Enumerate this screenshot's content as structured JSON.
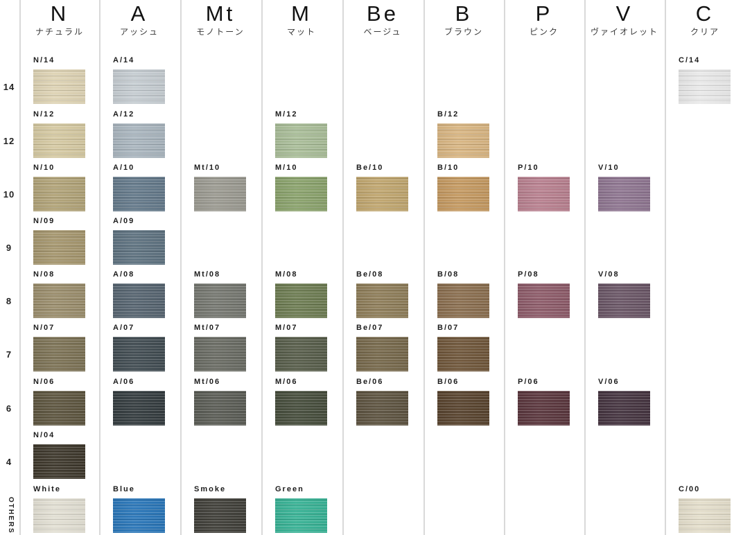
{
  "chart_data": {
    "type": "table",
    "title": "Hair color shade chart",
    "row_levels": [
      "14",
      "12",
      "10",
      "9",
      "8",
      "7",
      "6",
      "4",
      "OTHERS"
    ],
    "columns": [
      {
        "code": "N",
        "name_kana": "ナチュラル"
      },
      {
        "code": "A",
        "name_kana": "アッシュ"
      },
      {
        "code": "Mt",
        "name_kana": "モノトーン"
      },
      {
        "code": "M",
        "name_kana": "マット"
      },
      {
        "code": "Be",
        "name_kana": "ベージュ"
      },
      {
        "code": "B",
        "name_kana": "ブラウン"
      },
      {
        "code": "P",
        "name_kana": "ピンク"
      },
      {
        "code": "V",
        "name_kana": "ヴァイオレット"
      },
      {
        "code": "C",
        "name_kana": "クリア"
      }
    ],
    "swatches": [
      {
        "label": "N/14",
        "col": 0,
        "row": 0,
        "color": "#ded3b4"
      },
      {
        "label": "N/12",
        "col": 0,
        "row": 1,
        "color": "#d5c9a2"
      },
      {
        "label": "N/10",
        "col": 0,
        "row": 2,
        "color": "#b1a378"
      },
      {
        "label": "N/09",
        "col": 0,
        "row": 3,
        "color": "#a5966e"
      },
      {
        "label": "N/08",
        "col": 0,
        "row": 4,
        "color": "#9a8d6c"
      },
      {
        "label": "N/07",
        "col": 0,
        "row": 5,
        "color": "#7c7255"
      },
      {
        "label": "N/06",
        "col": 0,
        "row": 6,
        "color": "#5d553f"
      },
      {
        "label": "N/04",
        "col": 0,
        "row": 7,
        "color": "#3e382c"
      },
      {
        "label": "White",
        "col": 0,
        "row": 8,
        "color": "#e2dfd3"
      },
      {
        "label": "A/14",
        "col": 1,
        "row": 0,
        "color": "#c5ccd1"
      },
      {
        "label": "A/12",
        "col": 1,
        "row": 1,
        "color": "#a9b5be"
      },
      {
        "label": "A/10",
        "col": 1,
        "row": 2,
        "color": "#64798a"
      },
      {
        "label": "A/09",
        "col": 1,
        "row": 3,
        "color": "#5e7280"
      },
      {
        "label": "A/08",
        "col": 1,
        "row": 4,
        "color": "#566470"
      },
      {
        "label": "A/07",
        "col": 1,
        "row": 5,
        "color": "#414c52"
      },
      {
        "label": "A/06",
        "col": 1,
        "row": 6,
        "color": "#343c3f"
      },
      {
        "label": "Blue",
        "col": 1,
        "row": 8,
        "color": "#2a76b8"
      },
      {
        "label": "Mt/10",
        "col": 2,
        "row": 2,
        "color": "#9b9a91"
      },
      {
        "label": "Mt/08",
        "col": 2,
        "row": 4,
        "color": "#757770"
      },
      {
        "label": "Mt/07",
        "col": 2,
        "row": 5,
        "color": "#696b63"
      },
      {
        "label": "Mt/06",
        "col": 2,
        "row": 6,
        "color": "#5a5c55"
      },
      {
        "label": "Smoke",
        "col": 2,
        "row": 8,
        "color": "#403f39"
      },
      {
        "label": "M/12",
        "col": 3,
        "row": 1,
        "color": "#a9bd98"
      },
      {
        "label": "M/10",
        "col": 3,
        "row": 2,
        "color": "#8aa26c"
      },
      {
        "label": "M/08",
        "col": 3,
        "row": 4,
        "color": "#6d7c52"
      },
      {
        "label": "M/07",
        "col": 3,
        "row": 5,
        "color": "#575d4a"
      },
      {
        "label": "M/06",
        "col": 3,
        "row": 6,
        "color": "#464d3c"
      },
      {
        "label": "Green",
        "col": 3,
        "row": 8,
        "color": "#38b295"
      },
      {
        "label": "Be/10",
        "col": 4,
        "row": 2,
        "color": "#c0a66f"
      },
      {
        "label": "Be/08",
        "col": 4,
        "row": 4,
        "color": "#8e7d59"
      },
      {
        "label": "Be/07",
        "col": 4,
        "row": 5,
        "color": "#76684b"
      },
      {
        "label": "Be/06",
        "col": 4,
        "row": 6,
        "color": "#5d5340"
      },
      {
        "label": "B/12",
        "col": 5,
        "row": 1,
        "color": "#d8b582"
      },
      {
        "label": "B/10",
        "col": 5,
        "row": 2,
        "color": "#c49961"
      },
      {
        "label": "B/08",
        "col": 5,
        "row": 4,
        "color": "#8a6e4f"
      },
      {
        "label": "B/07",
        "col": 5,
        "row": 5,
        "color": "#6f563a"
      },
      {
        "label": "B/06",
        "col": 5,
        "row": 6,
        "color": "#58432e"
      },
      {
        "label": "P/10",
        "col": 6,
        "row": 2,
        "color": "#b8808f"
      },
      {
        "label": "P/08",
        "col": 6,
        "row": 4,
        "color": "#8d5b69"
      },
      {
        "label": "P/06",
        "col": 6,
        "row": 6,
        "color": "#5a363d"
      },
      {
        "label": "V/10",
        "col": 7,
        "row": 2,
        "color": "#8e7590"
      },
      {
        "label": "V/08",
        "col": 7,
        "row": 4,
        "color": "#6a5666"
      },
      {
        "label": "V/06",
        "col": 7,
        "row": 6,
        "color": "#453440"
      },
      {
        "label": "C/14",
        "col": 8,
        "row": 0,
        "color": "#e9e9e9"
      },
      {
        "label": "C/00",
        "col": 8,
        "row": 8,
        "color": "#e4decb"
      }
    ],
    "divider_color": "#d9d9d9",
    "background_color": "#ffffff"
  }
}
